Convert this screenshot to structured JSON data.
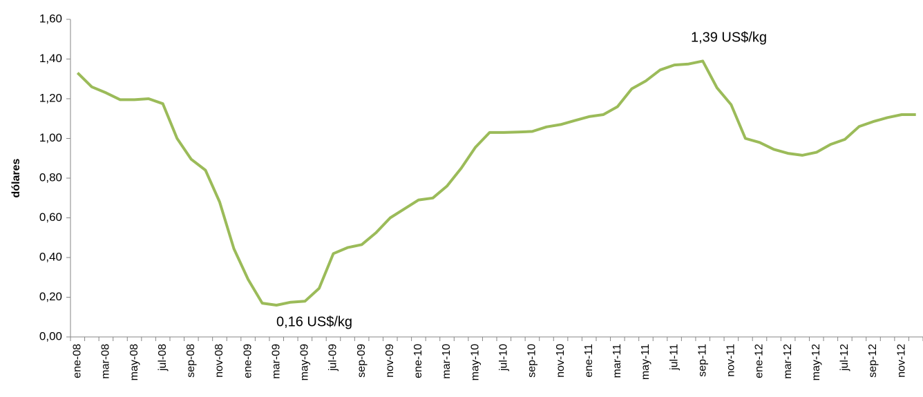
{
  "chart_data": {
    "type": "line",
    "y_label": "dólares",
    "annotations": [
      "1,39 US$/kg",
      "0,16 US$/kg"
    ],
    "categories": [
      "ene-08",
      null,
      "mar-08",
      null,
      "may-08",
      null,
      "jul-08",
      null,
      "sep-08",
      null,
      "nov-08",
      null,
      "ene-09",
      null,
      "mar-09",
      null,
      "may-09",
      null,
      "jul-09",
      null,
      "sep-09",
      null,
      "nov-09",
      null,
      "ene-10",
      null,
      "mar-10",
      null,
      "may-10",
      null,
      "jul-10",
      null,
      "sep-10",
      null,
      "nov-10",
      null,
      "ene-11",
      null,
      "mar-11",
      null,
      "may-11",
      null,
      "jul-11",
      null,
      "sep-11",
      null,
      "nov-11",
      null,
      "ene-12",
      null,
      "mar-12",
      null,
      "may-12",
      null,
      "jul-12",
      null,
      "sep-12",
      null,
      "nov-12",
      null
    ],
    "values": [
      1.33,
      1.26,
      1.23,
      1.195,
      1.195,
      1.2,
      1.175,
      1.0,
      0.895,
      0.84,
      0.68,
      0.445,
      0.29,
      0.17,
      0.16,
      0.175,
      0.18,
      0.245,
      0.42,
      0.45,
      0.465,
      0.525,
      0.6,
      0.645,
      0.69,
      0.7,
      0.76,
      0.85,
      0.955,
      1.03,
      1.03,
      1.032,
      1.035,
      1.058,
      1.07,
      1.09,
      1.11,
      1.12,
      1.16,
      1.25,
      1.29,
      1.345,
      1.37,
      1.375,
      1.39,
      1.255,
      1.17,
      1.0,
      0.98,
      0.945,
      0.925,
      0.915,
      0.93,
      0.97,
      0.995,
      1.06,
      1.085,
      1.105,
      1.12,
      1.12
    ],
    "color": "#9bbb59",
    "ylim": [
      0,
      1.6
    ],
    "yticks": [
      {
        "value": 0,
        "label": "0,00"
      },
      {
        "value": 0.2,
        "label": "0,20"
      },
      {
        "value": 0.4,
        "label": "0,40"
      },
      {
        "value": 0.6,
        "label": "0,60"
      },
      {
        "value": 0.8,
        "label": "0,80"
      },
      {
        "value": 1.0,
        "label": "1,00"
      },
      {
        "value": 1.2,
        "label": "1,20"
      },
      {
        "value": 1.4,
        "label": "1,40"
      },
      {
        "value": 1.6,
        "label": "1,60"
      }
    ],
    "grid": false
  }
}
